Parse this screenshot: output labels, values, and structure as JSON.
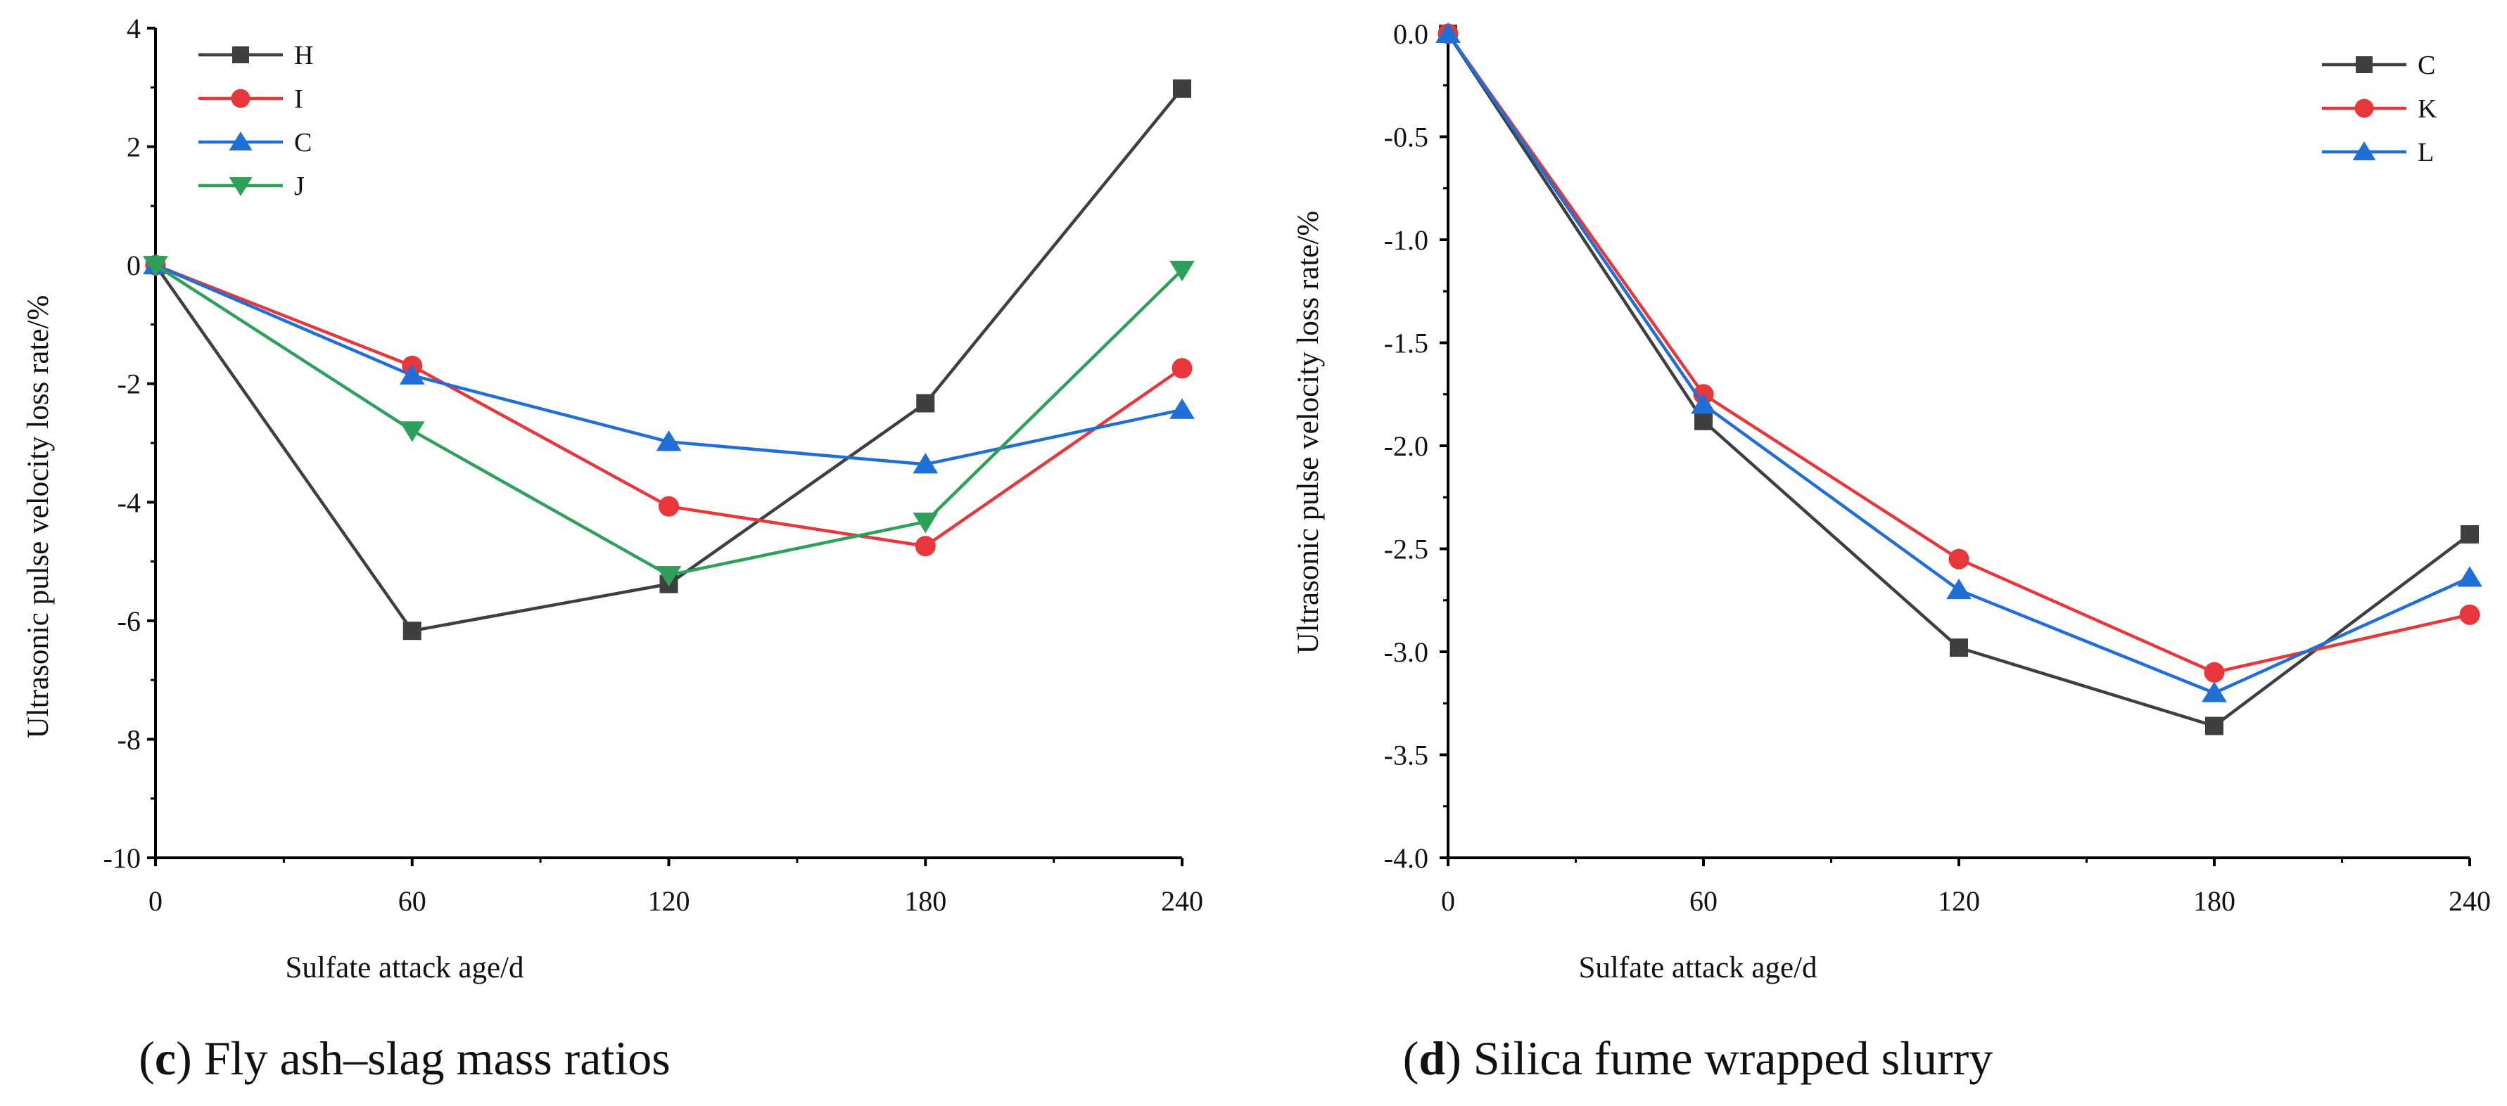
{
  "chart_data": [
    {
      "type": "line",
      "panel": "c",
      "caption": {
        "letter": "c",
        "text": "Fly ash–slag mass ratios"
      },
      "xlabel": "Sulfate attack age/d",
      "ylabel": "Ultrasonic pulse velocity loss rate/%",
      "x": [
        0,
        60,
        120,
        180,
        240
      ],
      "xlim": [
        0,
        240
      ],
      "ylim": [
        -10,
        4
      ],
      "xticks": [
        0,
        60,
        120,
        180,
        240
      ],
      "xtick_labels": [
        "0",
        "60",
        "120",
        "180",
        "240"
      ],
      "yticks": [
        -10,
        -8,
        -6,
        -4,
        -2,
        0,
        2,
        4
      ],
      "ytick_labels": [
        "-10",
        "-8",
        "-6",
        "-4",
        "-2",
        "0",
        "2",
        "4"
      ],
      "grid": false,
      "legend": "top-left",
      "series": [
        {
          "name": "H",
          "marker": "square",
          "color": "#3f3f3f",
          "values": [
            0,
            -6.17,
            -5.38,
            -2.33,
            2.98
          ]
        },
        {
          "name": "I",
          "marker": "circle",
          "color": "#e8373b",
          "values": [
            0,
            -1.7,
            -4.07,
            -4.74,
            -1.74
          ]
        },
        {
          "name": "C",
          "marker": "triangle-up",
          "color": "#1f6fd6",
          "values": [
            0,
            -1.86,
            -2.98,
            -3.36,
            -2.44
          ]
        },
        {
          "name": "J",
          "marker": "triangle-down",
          "color": "#2da05a",
          "values": [
            0,
            -2.79,
            -5.23,
            -4.33,
            -0.08
          ]
        }
      ]
    },
    {
      "type": "line",
      "panel": "d",
      "caption": {
        "letter": "d",
        "text": "Silica fume wrapped slurry"
      },
      "xlabel": "Sulfate attack age/d",
      "ylabel": "Ultrasonic pulse velocity loss rate/%",
      "x": [
        0,
        60,
        120,
        180,
        240
      ],
      "xlim": [
        0,
        240
      ],
      "ylim": [
        -4.0,
        0.0
      ],
      "xticks": [
        0,
        60,
        120,
        180,
        240
      ],
      "xtick_labels": [
        "0",
        "60",
        "120",
        "180",
        "240"
      ],
      "yticks": [
        -4.0,
        -3.5,
        -3.0,
        -2.5,
        -2.0,
        -1.5,
        -1.0,
        -0.5,
        0.0
      ],
      "ytick_labels": [
        "-4.0",
        "-3.5",
        "-3.0",
        "-2.5",
        "-2.0",
        "-1.5",
        "-1.0",
        "-0.5",
        "0.0"
      ],
      "grid": false,
      "legend": "top-right",
      "series": [
        {
          "name": "C",
          "marker": "square",
          "color": "#3f3f3f",
          "values": [
            0,
            -1.88,
            -2.98,
            -3.36,
            -2.43
          ]
        },
        {
          "name": "K",
          "marker": "circle",
          "color": "#e8373b",
          "values": [
            0,
            -1.75,
            -2.55,
            -3.1,
            -2.82
          ]
        },
        {
          "name": "L",
          "marker": "triangle-up",
          "color": "#1f6fd6",
          "values": [
            0,
            -1.8,
            -2.7,
            -3.2,
            -2.64
          ]
        }
      ]
    }
  ]
}
